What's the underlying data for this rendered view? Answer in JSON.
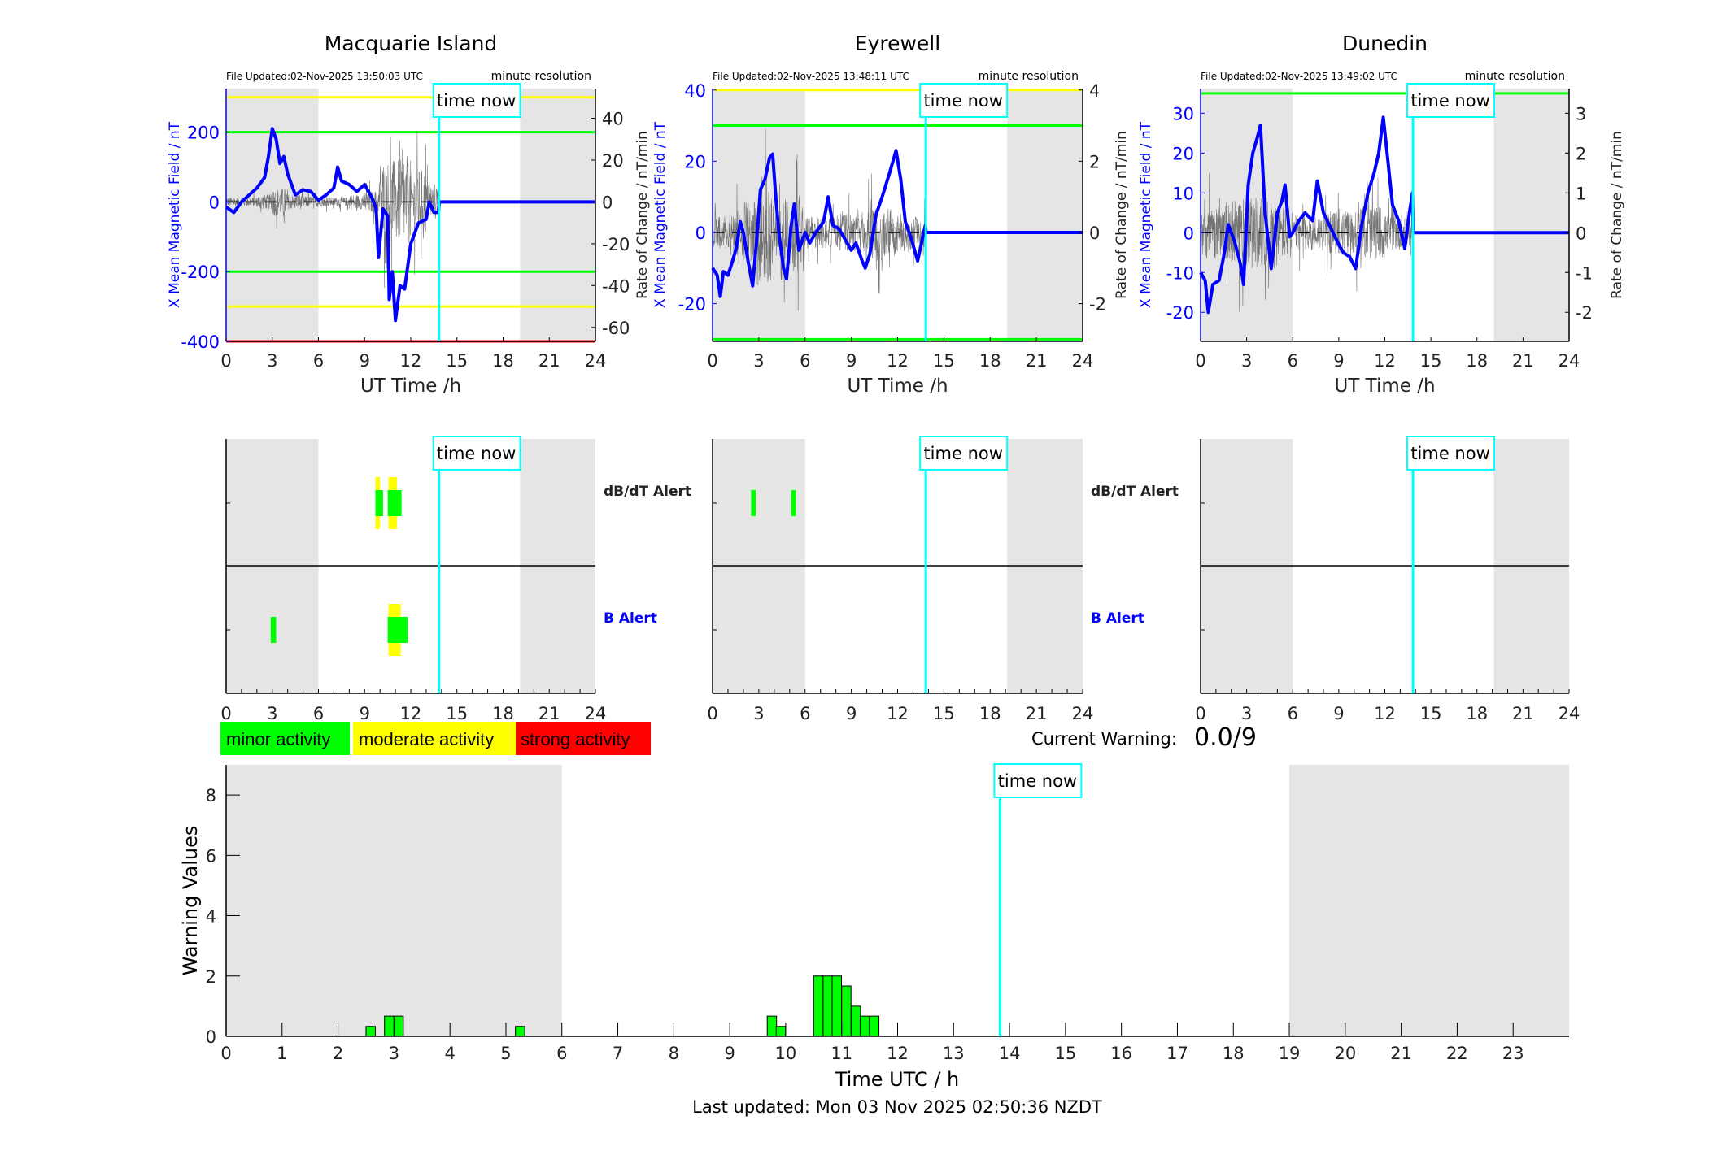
{
  "colors": {
    "field": "#0000ff",
    "rate": "#000000",
    "minor": "#00ff00",
    "moderate": "#ffff00",
    "strong": "#ff0000",
    "time_now": "#00ffff",
    "night": "#e5e5e5"
  },
  "time_now_label": "time now",
  "time_now_hours": 13.83,
  "panels": [
    {
      "title": "Macquarie Island",
      "file_updated": "File Updated:02-Nov-2025 13:50:03 UTC",
      "resolution": "minute resolution",
      "left_ylabel": "X Mean Magnetic Field / nT",
      "right_ylabel": "Rate of Change / nT/min",
      "xlabel": "UT Time /h",
      "xticks": [
        0,
        3,
        6,
        9,
        12,
        15,
        18,
        21,
        24
      ],
      "ylim": [
        -400,
        325
      ],
      "yticks": [
        -400,
        -200,
        0,
        200
      ],
      "right_ylim": [
        -66.7,
        54.2
      ],
      "right_yticks": [
        -60,
        -40,
        -20,
        0,
        20,
        40
      ],
      "night_shading": [
        [
          0,
          6
        ],
        [
          19.1,
          24
        ]
      ],
      "threshold_lines": [
        {
          "value": 300,
          "level": "moderate"
        },
        {
          "value": 200,
          "level": "minor"
        },
        {
          "value": -200,
          "level": "minor"
        },
        {
          "value": -300,
          "level": "moderate"
        },
        {
          "value": -400,
          "level": "strong"
        }
      ],
      "x_field": [
        [
          0,
          -15
        ],
        [
          0.5,
          -30
        ],
        [
          1,
          0
        ],
        [
          1.5,
          20
        ],
        [
          2,
          40
        ],
        [
          2.5,
          70
        ],
        [
          2.75,
          130
        ],
        [
          3,
          210
        ],
        [
          3.25,
          180
        ],
        [
          3.5,
          110
        ],
        [
          3.75,
          130
        ],
        [
          4,
          80
        ],
        [
          4.5,
          20
        ],
        [
          5,
          35
        ],
        [
          5.5,
          30
        ],
        [
          6,
          5
        ],
        [
          6.5,
          20
        ],
        [
          7,
          40
        ],
        [
          7.25,
          100
        ],
        [
          7.5,
          60
        ],
        [
          8,
          50
        ],
        [
          8.5,
          30
        ],
        [
          9,
          50
        ],
        [
          9.5,
          10
        ],
        [
          9.75,
          -20
        ],
        [
          9.9,
          -160
        ],
        [
          10.2,
          -20
        ],
        [
          10.5,
          -40
        ],
        [
          10.6,
          -280
        ],
        [
          10.8,
          -200
        ],
        [
          11.0,
          -340
        ],
        [
          11.3,
          -240
        ],
        [
          11.6,
          -250
        ],
        [
          12,
          -120
        ],
        [
          12.5,
          -60
        ],
        [
          13,
          -50
        ],
        [
          13.2,
          0
        ],
        [
          13.5,
          -30
        ],
        [
          13.8,
          -30
        ],
        [
          13.85,
          0
        ],
        [
          24,
          0
        ]
      ],
      "rate_envelope": [
        5,
        5,
        8,
        15,
        8,
        6,
        5,
        5,
        8,
        12,
        45,
        45,
        35,
        20,
        15
      ]
    },
    {
      "title": "Eyrewell",
      "file_updated": "File Updated:02-Nov-2025 13:48:11 UTC",
      "resolution": "minute resolution",
      "left_ylabel": "X Mean Magnetic Field / nT",
      "right_ylabel": "Rate of Change / nT/min",
      "xlabel": "UT Time /h",
      "xticks": [
        0,
        3,
        6,
        9,
        12,
        15,
        18,
        21,
        24
      ],
      "ylim": [
        -30.6,
        40.4
      ],
      "yticks": [
        -20,
        0,
        20,
        40
      ],
      "right_ylim": [
        -3.06,
        4.04
      ],
      "right_yticks": [
        -2,
        0,
        2,
        4
      ],
      "night_shading": [
        [
          0,
          6
        ],
        [
          19.1,
          24
        ]
      ],
      "threshold_lines": [
        {
          "value": 40,
          "level": "moderate"
        },
        {
          "value": 30,
          "level": "minor"
        },
        {
          "value": -30,
          "level": "minor"
        }
      ],
      "x_field": [
        [
          0,
          -10
        ],
        [
          0.3,
          -12
        ],
        [
          0.5,
          -18
        ],
        [
          0.7,
          -11
        ],
        [
          1,
          -12
        ],
        [
          1.3,
          -8
        ],
        [
          1.5,
          -5
        ],
        [
          1.8,
          3
        ],
        [
          2,
          0
        ],
        [
          2.3,
          -8
        ],
        [
          2.6,
          -15
        ],
        [
          2.9,
          0
        ],
        [
          3.1,
          12
        ],
        [
          3.4,
          15
        ],
        [
          3.7,
          21
        ],
        [
          3.9,
          22
        ],
        [
          4.1,
          10
        ],
        [
          4.3,
          0
        ],
        [
          4.6,
          -10
        ],
        [
          4.8,
          -13
        ],
        [
          5.1,
          2
        ],
        [
          5.3,
          8
        ],
        [
          5.6,
          -5
        ],
        [
          6,
          0
        ],
        [
          6.3,
          -3
        ],
        [
          6.7,
          0
        ],
        [
          7.2,
          3
        ],
        [
          7.5,
          10
        ],
        [
          7.8,
          2
        ],
        [
          8.2,
          1
        ],
        [
          8.6,
          -2
        ],
        [
          9,
          -5
        ],
        [
          9.3,
          -3
        ],
        [
          9.7,
          -8
        ],
        [
          9.9,
          -10
        ],
        [
          10.2,
          -6
        ],
        [
          10.6,
          5
        ],
        [
          11,
          10
        ],
        [
          11.5,
          17
        ],
        [
          11.9,
          23
        ],
        [
          12.2,
          15
        ],
        [
          12.5,
          3
        ],
        [
          12.9,
          -2
        ],
        [
          13.3,
          -8
        ],
        [
          13.6,
          -2
        ],
        [
          13.8,
          2
        ],
        [
          13.85,
          0
        ],
        [
          24,
          0
        ]
      ],
      "rate_envelope": [
        1,
        1.5,
        2,
        3,
        2,
        2.5,
        1,
        1,
        1.2,
        1.2,
        1.8,
        1.5,
        1.2,
        1,
        0.8
      ]
    },
    {
      "title": "Dunedin",
      "file_updated": "File Updated:02-Nov-2025 13:49:02 UTC",
      "resolution": "minute resolution",
      "left_ylabel": "X Mean Magnetic Field / nT",
      "right_ylabel": "Rate of Change / nT/min",
      "xlabel": "UT Time /h",
      "xticks": [
        0,
        3,
        6,
        9,
        12,
        15,
        18,
        21,
        24
      ],
      "ylim": [
        -27.3,
        36.2
      ],
      "yticks": [
        -20,
        -10,
        0,
        10,
        20,
        30
      ],
      "right_ylim": [
        -2.73,
        3.62
      ],
      "right_yticks": [
        -2,
        -1,
        0,
        1,
        2,
        3
      ],
      "night_shading": [
        [
          0,
          6
        ],
        [
          19.1,
          24
        ]
      ],
      "threshold_lines": [
        {
          "value": 35,
          "level": "minor"
        }
      ],
      "x_field": [
        [
          0,
          -10
        ],
        [
          0.3,
          -12
        ],
        [
          0.5,
          -20
        ],
        [
          0.8,
          -13
        ],
        [
          1.2,
          -12
        ],
        [
          1.5,
          -6
        ],
        [
          1.8,
          2
        ],
        [
          2.2,
          -2
        ],
        [
          2.6,
          -8
        ],
        [
          2.8,
          -13
        ],
        [
          3.1,
          12
        ],
        [
          3.4,
          20
        ],
        [
          3.7,
          24
        ],
        [
          3.9,
          27
        ],
        [
          4.2,
          5
        ],
        [
          4.6,
          -9
        ],
        [
          5,
          5
        ],
        [
          5.3,
          8
        ],
        [
          5.5,
          12
        ],
        [
          5.8,
          -1
        ],
        [
          6,
          0
        ],
        [
          6.4,
          3
        ],
        [
          6.8,
          5
        ],
        [
          7.3,
          3
        ],
        [
          7.6,
          13
        ],
        [
          8,
          5
        ],
        [
          8.5,
          1
        ],
        [
          9,
          -3
        ],
        [
          9.3,
          -5
        ],
        [
          9.7,
          -6
        ],
        [
          10.1,
          -9
        ],
        [
          10.5,
          2
        ],
        [
          10.9,
          10
        ],
        [
          11.3,
          15
        ],
        [
          11.6,
          20
        ],
        [
          11.9,
          29
        ],
        [
          12.2,
          18
        ],
        [
          12.5,
          7
        ],
        [
          12.9,
          3
        ],
        [
          13.3,
          -4
        ],
        [
          13.6,
          5
        ],
        [
          13.8,
          10
        ],
        [
          13.85,
          0
        ],
        [
          24,
          0
        ]
      ],
      "rate_envelope": [
        1.5,
        1.5,
        2,
        2,
        2,
        1.5,
        1,
        1,
        1.2,
        1.2,
        1.5,
        1.5,
        1,
        0.8,
        0.8
      ]
    }
  ],
  "alerts": {
    "dbdt_label": "dB/dT Alert",
    "b_label": "B Alert",
    "xticks": [
      0,
      3,
      6,
      9,
      12,
      15,
      18,
      21,
      24
    ],
    "stations": [
      {
        "dbdt": [
          {
            "start": 9.7,
            "end": 10.0,
            "level": "moderate"
          },
          {
            "start": 9.7,
            "end": 10.2,
            "level": "minor"
          },
          {
            "start": 10.55,
            "end": 11.1,
            "level": "moderate"
          },
          {
            "start": 10.5,
            "end": 11.4,
            "level": "minor"
          }
        ],
        "b": [
          {
            "start": 2.9,
            "end": 3.25,
            "level": "minor"
          },
          {
            "start": 10.55,
            "end": 11.35,
            "level": "moderate"
          },
          {
            "start": 10.5,
            "end": 11.8,
            "level": "minor"
          }
        ]
      },
      {
        "dbdt": [
          {
            "start": 2.5,
            "end": 2.8,
            "level": "minor"
          },
          {
            "start": 5.1,
            "end": 5.4,
            "level": "minor"
          }
        ],
        "b": []
      },
      {
        "dbdt": [],
        "b": []
      }
    ]
  },
  "legend": {
    "minor": "minor activity",
    "moderate": "moderate activity",
    "strong": "strong activity"
  },
  "current_warning": {
    "label": "Current Warning:",
    "value": "0.0/9"
  },
  "chart_data": {
    "type": "bar",
    "ylabel": "Warning Values",
    "xlabel": "Time UTC / h",
    "xlim": [
      0,
      24
    ],
    "ylim": [
      0,
      9
    ],
    "xticks": [
      0,
      1,
      2,
      3,
      4,
      5,
      6,
      7,
      8,
      9,
      10,
      11,
      12,
      13,
      14,
      15,
      16,
      17,
      18,
      19,
      20,
      21,
      22,
      23
    ],
    "yticks": [
      0,
      2,
      4,
      6,
      8
    ],
    "night_shading": [
      [
        0,
        6
      ],
      [
        19,
        24
      ]
    ],
    "bin_width_hours": 0.1667,
    "bars": [
      {
        "start": 2.5,
        "value": 0.33
      },
      {
        "start": 2.83,
        "value": 0.67
      },
      {
        "start": 3.0,
        "value": 0.67
      },
      {
        "start": 5.17,
        "value": 0.33
      },
      {
        "start": 9.67,
        "value": 0.67
      },
      {
        "start": 9.83,
        "value": 0.33
      },
      {
        "start": 10.5,
        "value": 2
      },
      {
        "start": 10.67,
        "value": 2
      },
      {
        "start": 10.83,
        "value": 2
      },
      {
        "start": 11.0,
        "value": 1.67
      },
      {
        "start": 11.17,
        "value": 1
      },
      {
        "start": 11.33,
        "value": 0.67
      },
      {
        "start": 11.5,
        "value": 0.67
      }
    ]
  },
  "last_updated": "Last updated: Mon 03 Nov 2025 02:50:36 NZDT"
}
